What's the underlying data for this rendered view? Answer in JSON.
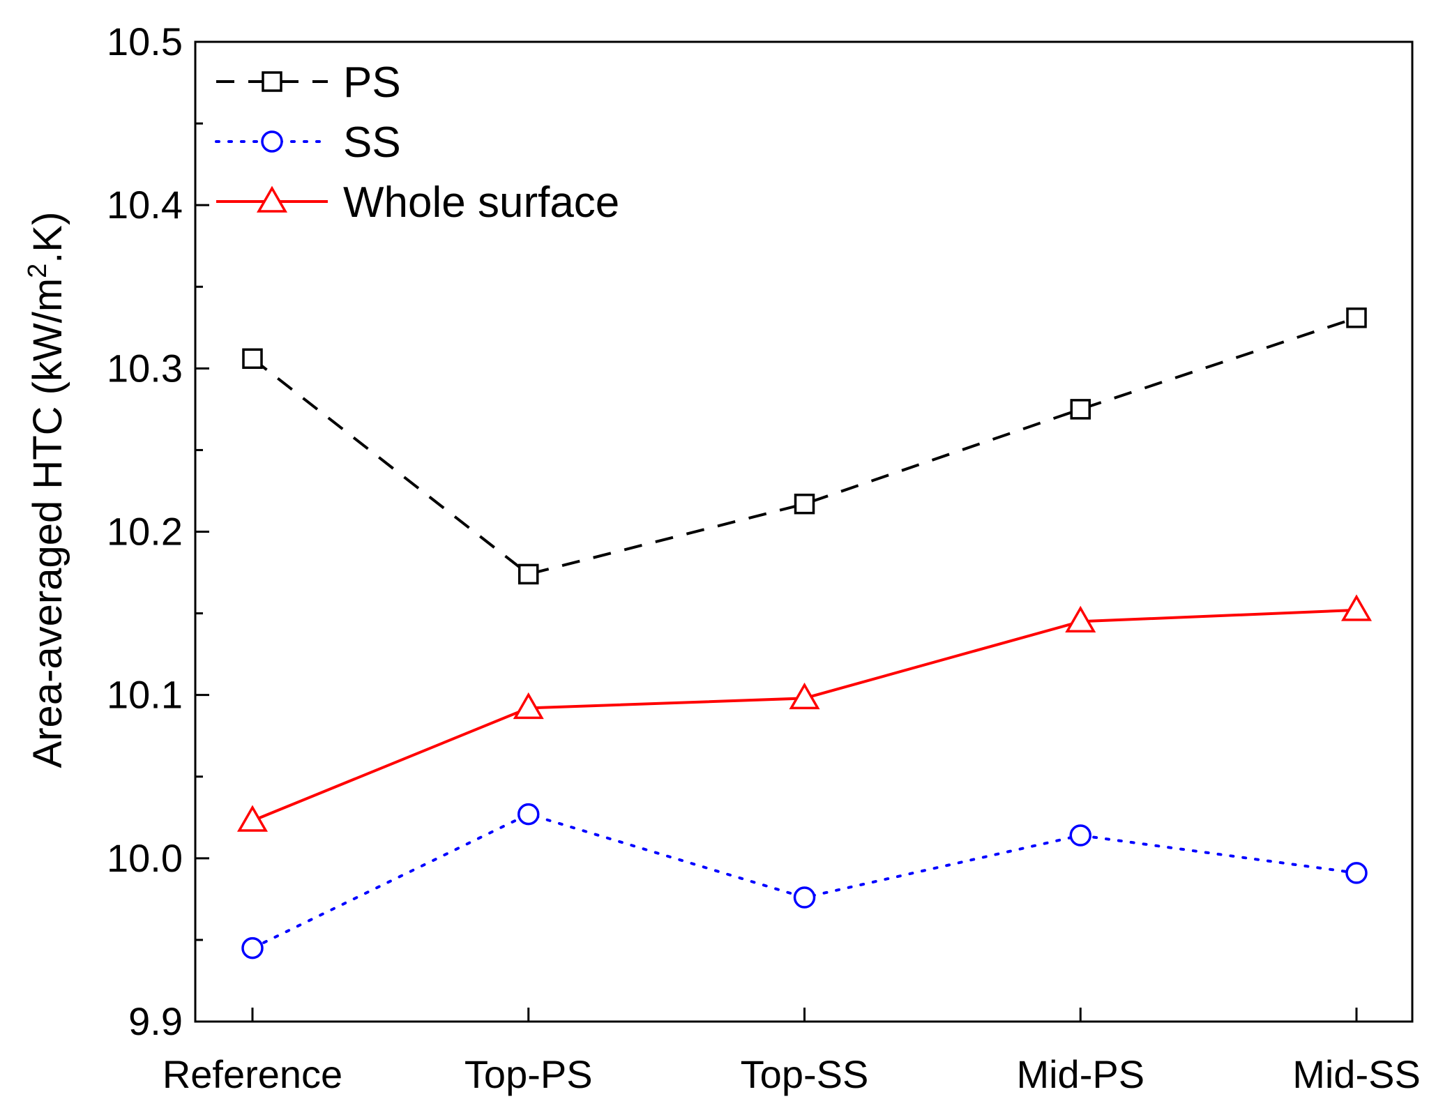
{
  "chart_data": {
    "type": "line",
    "title": "",
    "xlabel": "",
    "ylabel_main": "Area-averaged HTC (kW/m",
    "ylabel_sup": "2",
    "ylabel_tail": ".K)",
    "categories": [
      "Reference",
      "Top-PS",
      "Top-SS",
      "Mid-PS",
      "Mid-SS"
    ],
    "ylim": [
      9.9,
      10.5
    ],
    "yticks": [
      "9.9",
      "10.0",
      "10.1",
      "10.2",
      "10.3",
      "10.4",
      "10.5"
    ],
    "ytick_values": [
      9.9,
      10.0,
      10.1,
      10.2,
      10.3,
      10.4,
      10.5
    ],
    "legend_position": "top-left",
    "series": [
      {
        "name": "PS",
        "color": "#000000",
        "line": "dashed",
        "marker": "square",
        "values": [
          10.306,
          10.174,
          10.217,
          10.275,
          10.331
        ]
      },
      {
        "name": "SS",
        "color": "#0000ff",
        "line": "dotted",
        "marker": "circle",
        "values": [
          9.945,
          10.027,
          9.976,
          10.014,
          9.991
        ]
      },
      {
        "name": "Whole surface",
        "color": "#ff0000",
        "line": "solid",
        "marker": "triangle",
        "values": [
          10.023,
          10.092,
          10.098,
          10.145,
          10.152
        ]
      }
    ]
  }
}
